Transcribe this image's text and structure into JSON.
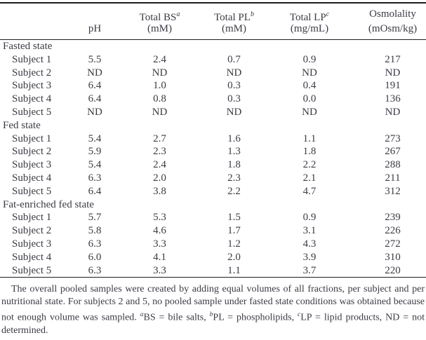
{
  "colors": {
    "background": "#ffffff",
    "text": "#3b3b44",
    "rule": "#1e1e1e"
  },
  "table": {
    "columns": [
      {
        "label": "",
        "sup": "",
        "unit": ""
      },
      {
        "label": "pH",
        "sup": "",
        "unit": ""
      },
      {
        "label": "Total BS",
        "sup": "a",
        "unit": "(mM)"
      },
      {
        "label": "Total PL",
        "sup": "b",
        "unit": "(mM)"
      },
      {
        "label": "Total LP",
        "sup": "c",
        "unit": "(mg/mL)"
      },
      {
        "label": "Osmolality",
        "sup": "",
        "unit": "(mOsm/kg)"
      }
    ],
    "sections": [
      {
        "title": "Fasted state",
        "rows": [
          {
            "label": "Subject 1",
            "values": [
              "5.5",
              "2.4",
              "0.7",
              "0.9",
              "217"
            ]
          },
          {
            "label": "Subject 2",
            "values": [
              "ND",
              "ND",
              "ND",
              "ND",
              "ND"
            ]
          },
          {
            "label": "Subject 3",
            "values": [
              "6.4",
              "1.0",
              "0.3",
              "0.4",
              "191"
            ]
          },
          {
            "label": "Subject 4",
            "values": [
              "6.4",
              "0.8",
              "0.3",
              "0.0",
              "136"
            ]
          },
          {
            "label": "Subject 5",
            "values": [
              "ND",
              "ND",
              "ND",
              "ND",
              "ND"
            ]
          }
        ]
      },
      {
        "title": "Fed state",
        "rows": [
          {
            "label": "Subject 1",
            "values": [
              "5.4",
              "2.7",
              "1.6",
              "1.1",
              "273"
            ]
          },
          {
            "label": "Subject 2",
            "values": [
              "5.9",
              "2.3",
              "1.3",
              "1.8",
              "267"
            ]
          },
          {
            "label": "Subject 3",
            "values": [
              "5.4",
              "2.4",
              "1.8",
              "2.2",
              "288"
            ]
          },
          {
            "label": "Subject 4",
            "values": [
              "6.3",
              "2.0",
              "2.3",
              "2.1",
              "211"
            ]
          },
          {
            "label": "Subject 5",
            "values": [
              "6.4",
              "3.8",
              "2.2",
              "4.7",
              "312"
            ]
          }
        ]
      },
      {
        "title": "Fat-enriched fed state",
        "rows": [
          {
            "label": "Subject 1",
            "values": [
              "5.7",
              "5.3",
              "1.5",
              "0.9",
              "239"
            ]
          },
          {
            "label": "Subject 2",
            "values": [
              "5.8",
              "4.6",
              "1.7",
              "3.1",
              "226"
            ]
          },
          {
            "label": "Subject 3",
            "values": [
              "6.3",
              "3.3",
              "1.2",
              "4.3",
              "272"
            ]
          },
          {
            "label": "Subject 4",
            "values": [
              "6.0",
              "4.1",
              "2.0",
              "3.9",
              "310"
            ]
          },
          {
            "label": "Subject 5",
            "values": [
              "6.3",
              "3.3",
              "1.1",
              "3.7",
              "220"
            ]
          }
        ]
      }
    ]
  },
  "footnote": {
    "segments": [
      {
        "text": "The overall pooled samples were created by adding equal volumes of all fractions, per subject and per nutritional state. For subjects 2 and 5, no pooled sample under fasted state conditions was obtained because not enough volume was sampled. "
      },
      {
        "sup": "a"
      },
      {
        "text": "BS = bile salts, "
      },
      {
        "sup": "b"
      },
      {
        "text": "PL = phospholipids, "
      },
      {
        "sup": "c"
      },
      {
        "text": "LP = lipid products, ND = not determined."
      }
    ]
  }
}
